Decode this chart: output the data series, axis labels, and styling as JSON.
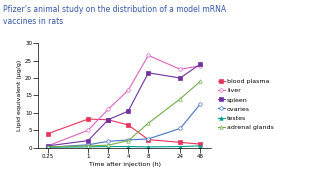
{
  "title": "Pfizer’s animal study on the distribution of a model mRNA\nvaccines in rats",
  "title_color": "#3355aa",
  "xlabel": "Time after injection (h)",
  "ylabel": "Lipid equivalent (μg/g)",
  "x": [
    0.25,
    1,
    2,
    4,
    8,
    24,
    48
  ],
  "xlabels": [
    "0.25",
    "1",
    "2",
    "4",
    "8",
    "24",
    "48"
  ],
  "ylim": [
    0,
    30
  ],
  "yticks": [
    0,
    5,
    10,
    15,
    20,
    25,
    30
  ],
  "series": [
    {
      "label": "blood plasma",
      "color": "#e8325a",
      "marker": "s",
      "markersize": 2.5,
      "markerfacecolor": "#e8325a",
      "linestyle": "-",
      "values": [
        4.0,
        8.2,
        8.0,
        6.5,
        2.3,
        1.5,
        1.0
      ]
    },
    {
      "label": "liver",
      "color": "#e060c0",
      "marker": "o",
      "markersize": 2.5,
      "markerfacecolor": "white",
      "linestyle": "-",
      "values": [
        0.5,
        5.0,
        11.0,
        16.5,
        26.5,
        22.5,
        23.5
      ]
    },
    {
      "label": "spleen",
      "color": "#7030a0",
      "marker": "s",
      "markersize": 2.5,
      "markerfacecolor": "#7030a0",
      "linestyle": "-",
      "values": [
        0.5,
        2.0,
        8.0,
        10.5,
        21.5,
        20.0,
        24.0
      ]
    },
    {
      "label": "ovaries",
      "color": "#4472c4",
      "marker": "o",
      "markersize": 2.5,
      "markerfacecolor": "white",
      "linestyle": "-",
      "values": [
        0.1,
        0.8,
        1.8,
        2.2,
        2.5,
        5.5,
        12.5
      ]
    },
    {
      "label": "testes",
      "color": "#00a090",
      "marker": "^",
      "markersize": 2.5,
      "markerfacecolor": "#00a090",
      "linestyle": "-",
      "values": [
        0.1,
        0.2,
        0.3,
        0.3,
        0.2,
        0.3,
        0.5
      ]
    },
    {
      "label": "adrenal glands",
      "color": "#70ad47",
      "marker": "^",
      "markersize": 2.5,
      "markerfacecolor": "white",
      "linestyle": "-",
      "values": [
        0.2,
        0.5,
        0.7,
        2.0,
        7.0,
        14.0,
        19.0
      ]
    }
  ],
  "legend_fontsize": 4.5,
  "axis_fontsize": 4.5,
  "tick_fontsize": 4.0,
  "title_fontsize": 5.5,
  "linewidth": 0.8,
  "background_color": "#ffffff"
}
